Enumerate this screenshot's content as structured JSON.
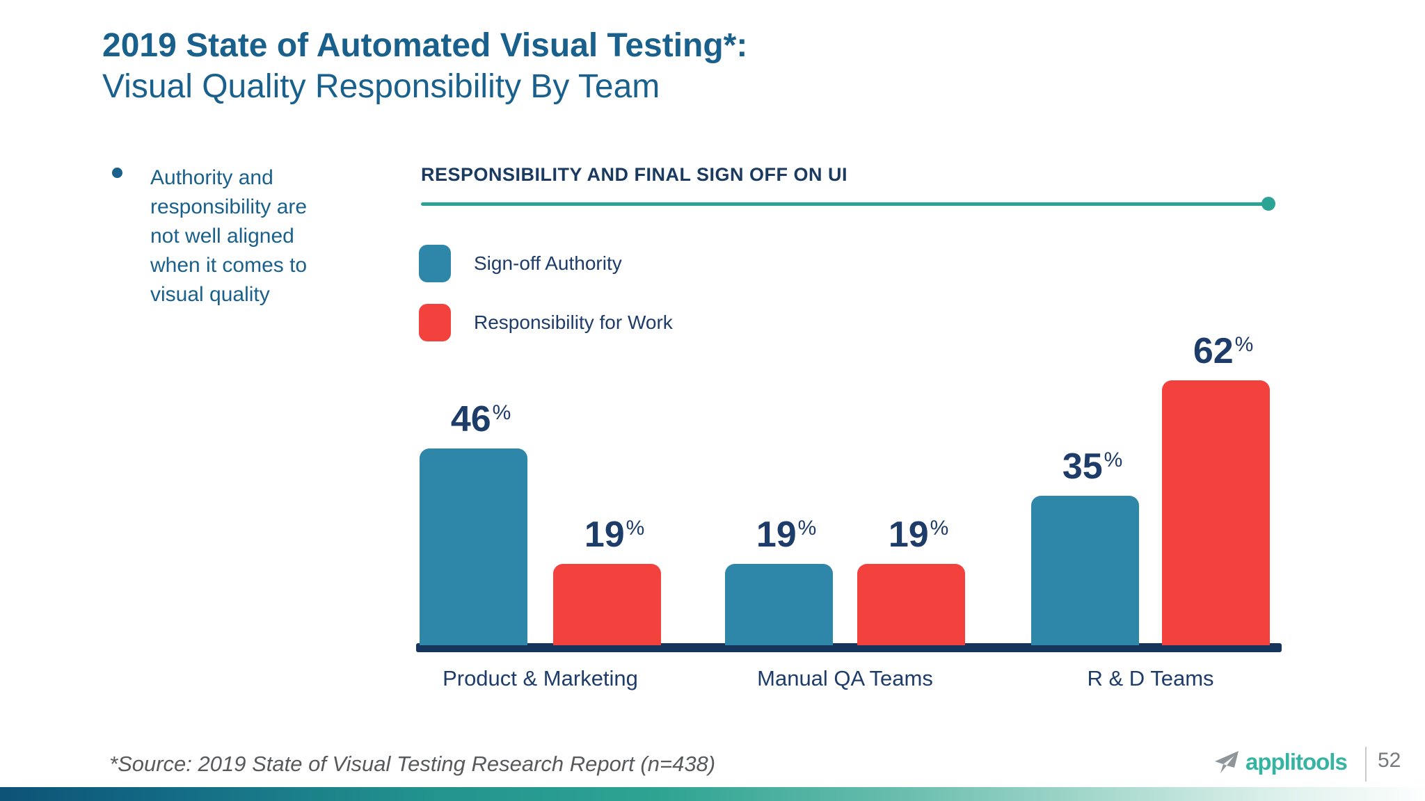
{
  "slide": {
    "title_line1": "2019 State of Automated Visual Testing*:",
    "title_line2": "Visual Quality Responsibility By Team",
    "bullet_text": "Authority and\nresponsibility are\nnot well aligned\nwhen it comes to\nvisual quality",
    "source_note": "*Source: 2019 State of Visual Testing Research Report (n=438)",
    "logo_text": "applitools",
    "page_number": "52"
  },
  "chart_data": {
    "type": "bar",
    "title": "RESPONSIBILITY AND FINAL SIGN OFF ON UI",
    "categories": [
      "Product & Marketing",
      "Manual QA Teams",
      "R & D Teams"
    ],
    "series": [
      {
        "name": "Sign-off Authority",
        "color": "#2E86A8",
        "values": [
          46,
          19,
          35
        ]
      },
      {
        "name": "Responsibility for Work",
        "color": "#F3413D",
        "values": [
          19,
          19,
          62
        ]
      }
    ],
    "value_suffix": "%",
    "ylim": [
      0,
      70
    ],
    "grid": false,
    "legend_position": "top-left",
    "value_labels": "above-bars"
  },
  "colors": {
    "heading_blue": "#19618C",
    "navy_text": "#1E3C69",
    "chart_title_navy": "#1A3A60",
    "axis_navy": "#16355C",
    "rule_teal": "#2BA496",
    "logo_teal": "#35B4A2",
    "source_gray": "#58595B",
    "gradient_left_navy": "#0D5277",
    "gradient_mid_teal": "#2EA392"
  }
}
